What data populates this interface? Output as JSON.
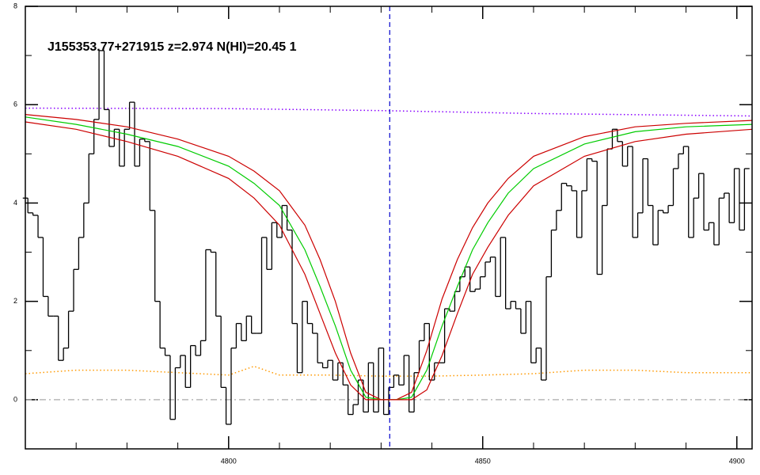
{
  "chart_data": {
    "type": "line",
    "title": "J155353.77+271915 z=2.974 N(HI)=20.45 1",
    "xlim": [
      4760,
      4903
    ],
    "ylim": [
      -1,
      8
    ],
    "xticks": [
      4800,
      4850,
      4900
    ],
    "yticks": [
      0,
      2,
      4,
      6,
      8
    ],
    "xminorticks": [
      4770,
      4780,
      4790,
      4810,
      4820,
      4830,
      4840,
      4860,
      4870,
      4880,
      4890
    ],
    "yminorticks": [
      1,
      3,
      5,
      7
    ],
    "vline": {
      "x": 4831.7,
      "color": "#0000cc"
    },
    "series": [
      {
        "color": "#aaaaaa",
        "line_style": "dashdot",
        "x": [
          4760,
          4903
        ],
        "values": [
          0,
          0
        ]
      },
      {
        "color": "#8800ff",
        "line_style": "dotted",
        "x": [
          4760,
          4800,
          4830,
          4860,
          4903
        ],
        "values": [
          5.93,
          5.92,
          5.88,
          5.82,
          5.77
        ]
      },
      {
        "color": "#ff9900",
        "line_style": "dotted",
        "x": [
          4760,
          4770,
          4780,
          4790,
          4800,
          4805,
          4810,
          4815,
          4820,
          4830,
          4840,
          4850,
          4860,
          4870,
          4880,
          4890,
          4903
        ],
        "values": [
          0.53,
          0.6,
          0.6,
          0.55,
          0.5,
          0.68,
          0.5,
          0.5,
          0.5,
          0.48,
          0.48,
          0.5,
          0.53,
          0.6,
          0.6,
          0.55,
          0.55
        ]
      },
      {
        "color": "#000000",
        "line_style": "steps",
        "x": [
          4760,
          4761,
          4762,
          4763,
          4764,
          4765,
          4766,
          4767,
          4768,
          4769,
          4770,
          4771,
          4772,
          4773,
          4774,
          4775,
          4776,
          4777,
          4778,
          4779,
          4780,
          4781,
          4782,
          4783,
          4784,
          4785,
          4786,
          4787,
          4788,
          4789,
          4790,
          4791,
          4792,
          4793,
          4794,
          4795,
          4796,
          4797,
          4798,
          4799,
          4800,
          4801,
          4802,
          4803,
          4804,
          4805,
          4806,
          4807,
          4808,
          4809,
          4810,
          4811,
          4812,
          4813,
          4814,
          4815,
          4816,
          4817,
          4818,
          4819,
          4820,
          4821,
          4822,
          4823,
          4824,
          4825,
          4826,
          4827,
          4828,
          4829,
          4830,
          4831,
          4832,
          4833,
          4834,
          4835,
          4836,
          4837,
          4838,
          4839,
          4840,
          4841,
          4842,
          4843,
          4844,
          4845,
          4846,
          4847,
          4848,
          4849,
          4850,
          4851,
          4852,
          4853,
          4854,
          4855,
          4856,
          4857,
          4858,
          4859,
          4860,
          4861,
          4862,
          4863,
          4864,
          4865,
          4866,
          4867,
          4868,
          4869,
          4870,
          4871,
          4872,
          4873,
          4874,
          4875,
          4876,
          4877,
          4878,
          4879,
          4880,
          4881,
          4882,
          4883,
          4884,
          4885,
          4886,
          4887,
          4888,
          4889,
          4890,
          4891,
          4892,
          4893,
          4894,
          4895,
          4896,
          4897,
          4898,
          4899,
          4900,
          4901,
          4902
        ],
        "values": [
          4.1,
          3.8,
          3.75,
          3.3,
          2.1,
          1.7,
          1.7,
          0.8,
          1.05,
          1.8,
          2.65,
          3.3,
          4.0,
          5.0,
          5.7,
          7.1,
          5.9,
          5.15,
          5.5,
          4.75,
          5.5,
          6.05,
          4.75,
          5.3,
          5.25,
          3.85,
          2.0,
          1.05,
          0.9,
          -0.4,
          0.65,
          0.9,
          0.25,
          1.1,
          0.9,
          1.2,
          3.05,
          3.0,
          1.7,
          0.25,
          -0.5,
          1.05,
          1.55,
          1.2,
          1.7,
          1.35,
          1.35,
          3.3,
          2.65,
          3.6,
          3.3,
          3.95,
          3.45,
          1.55,
          0.55,
          2.0,
          1.55,
          1.35,
          0.75,
          0.65,
          0.8,
          0.4,
          0.75,
          0.3,
          -0.3,
          -0.1,
          0.4,
          -0.25,
          0.75,
          -0.25,
          1.05,
          -0.3,
          0.25,
          0.5,
          0.3,
          0.9,
          -0.25,
          0.55,
          1.2,
          1.55,
          0.4,
          0.75,
          0.75,
          1.85,
          1.8,
          2.2,
          2.5,
          2.7,
          2.2,
          2.25,
          2.5,
          2.8,
          2.9,
          2.1,
          3.3,
          1.85,
          2.0,
          1.85,
          1.35,
          2.0,
          0.75,
          1.05,
          0.4,
          2.5,
          3.45,
          3.85,
          4.4,
          4.35,
          4.25,
          3.3,
          4.25,
          4.9,
          4.85,
          2.55,
          3.95,
          5.1,
          5.5,
          5.25,
          4.75,
          5.15,
          3.3,
          3.8,
          4.9,
          3.95,
          3.15,
          3.85,
          3.8,
          3.95,
          4.7,
          5.0,
          5.15,
          3.3,
          4.1,
          4.6,
          3.45,
          3.6,
          3.15,
          4.1,
          4.2,
          3.6,
          4.7,
          3.45,
          4.7
        ]
      },
      {
        "color": "#cc0000",
        "line_style": "solid",
        "x": [
          4760,
          4770,
          4780,
          4790,
          4800,
          4805,
          4810,
          4815,
          4818,
          4821,
          4824,
          4827,
          4830,
          4833,
          4836,
          4839,
          4842,
          4845,
          4848,
          4851,
          4855,
          4860,
          4870,
          4880,
          4890,
          4903
        ],
        "values": [
          5.8,
          5.7,
          5.55,
          5.3,
          4.95,
          4.65,
          4.25,
          3.55,
          2.85,
          2.0,
          0.95,
          0.15,
          0,
          0,
          0.15,
          1.0,
          2.05,
          2.85,
          3.5,
          4.0,
          4.5,
          4.95,
          5.35,
          5.55,
          5.62,
          5.68
        ]
      },
      {
        "color": "#00cc00",
        "line_style": "solid",
        "x": [
          4760,
          4770,
          4780,
          4790,
          4800,
          4805,
          4810,
          4815,
          4818,
          4821,
          4824,
          4827,
          4830,
          4833,
          4836,
          4839,
          4842,
          4845,
          4848,
          4851,
          4855,
          4860,
          4870,
          4880,
          4890,
          4903
        ],
        "values": [
          5.75,
          5.6,
          5.4,
          5.15,
          4.75,
          4.4,
          3.95,
          3.05,
          2.3,
          1.5,
          0.6,
          0.05,
          0,
          0,
          0.05,
          0.6,
          1.5,
          2.3,
          3.05,
          3.6,
          4.2,
          4.7,
          5.2,
          5.45,
          5.55,
          5.6
        ]
      },
      {
        "color": "#cc0000",
        "line_style": "solid",
        "x": [
          4760,
          4770,
          4780,
          4790,
          4800,
          4805,
          4810,
          4815,
          4818,
          4821,
          4824,
          4827,
          4830,
          4833,
          4836,
          4839,
          4842,
          4845,
          4848,
          4851,
          4855,
          4860,
          4870,
          4880,
          4890,
          4903
        ],
        "values": [
          5.65,
          5.5,
          5.25,
          4.95,
          4.5,
          4.1,
          3.55,
          2.55,
          1.75,
          0.95,
          0.3,
          0,
          0,
          0,
          0,
          0.2,
          0.9,
          1.75,
          2.55,
          3.1,
          3.75,
          4.35,
          4.95,
          5.25,
          5.4,
          5.5
        ]
      }
    ]
  }
}
